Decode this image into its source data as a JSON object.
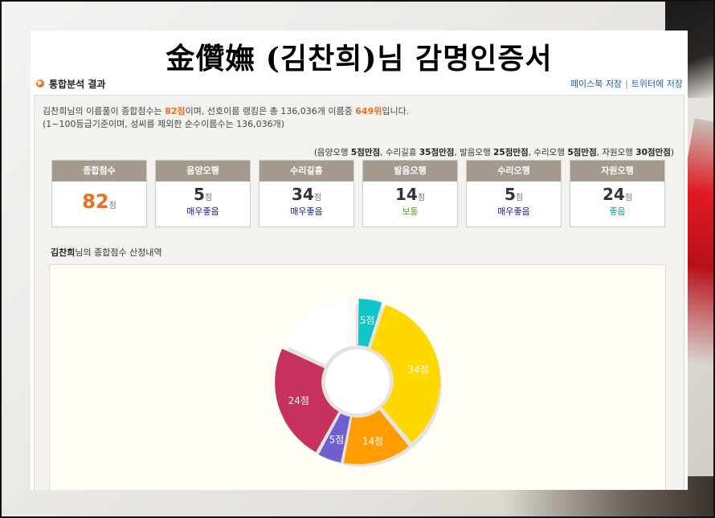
{
  "title": "金儹嫵 (김찬희)님 감명인증서",
  "section_label": "통합분석 결과",
  "share": {
    "facebook": "페이스북 저장",
    "separator": "|",
    "twitter": "트위터에 저장"
  },
  "summary": {
    "name": "김찬희",
    "line1_a": "님의 이름풀이 종합점수는 ",
    "score": "82점",
    "line1_b": "이며, 선호이름 랭킹은 총 136,036개 이름중 ",
    "rank": "649위",
    "line1_c": "입니다.",
    "line2": "(1~100등급기준이며, 성씨를 제외한 순수이름수는 136,036개)"
  },
  "max_note": {
    "p1": "(음양오행 ",
    "v1": "5점만점",
    "p2": ", 수리길흉 ",
    "v2": "35점만점",
    "p3": ", 발음오행 ",
    "v3": "25점만점",
    "p4": ", 수리오행 ",
    "v4": "5점만점",
    "p5": ", 자원오행 ",
    "v5": "30점만점",
    "p6": ")"
  },
  "cards": [
    {
      "label": "종합점수",
      "value": "82",
      "unit": "점",
      "status": "",
      "status_color": ""
    },
    {
      "label": "음양오행",
      "value": "5",
      "unit": "점",
      "status": "매우좋음",
      "status_color": "#1a1aa6"
    },
    {
      "label": "수리길흉",
      "value": "34",
      "unit": "점",
      "status": "매우좋음",
      "status_color": "#1a1aa6"
    },
    {
      "label": "발음오행",
      "value": "14",
      "unit": "점",
      "status": "보통",
      "status_color": "#5aa02c"
    },
    {
      "label": "수리오행",
      "value": "5",
      "unit": "점",
      "status": "매우좋음",
      "status_color": "#1a1aa6"
    },
    {
      "label": "자원오행",
      "value": "24",
      "unit": "점",
      "status": "좋음",
      "status_color": "#1a9a9a"
    }
  ],
  "breakdown": {
    "name": "김찬희",
    "text": "님의 종합점수 산정내역"
  },
  "chart_data": {
    "type": "pie",
    "donut": true,
    "total": 100,
    "slices": [
      {
        "label": "5점",
        "value": 5,
        "color": "#11c6c9"
      },
      {
        "label": "34점",
        "value": 34,
        "color": "#ffd800"
      },
      {
        "label": "14점",
        "value": 14,
        "color": "#ff9c00"
      },
      {
        "label": "5점",
        "value": 5,
        "color": "#6f5fcf"
      },
      {
        "label": "24점",
        "value": 24,
        "color": "#c63160"
      },
      {
        "label": "",
        "value": 18,
        "color": "#ffffff"
      }
    ]
  }
}
